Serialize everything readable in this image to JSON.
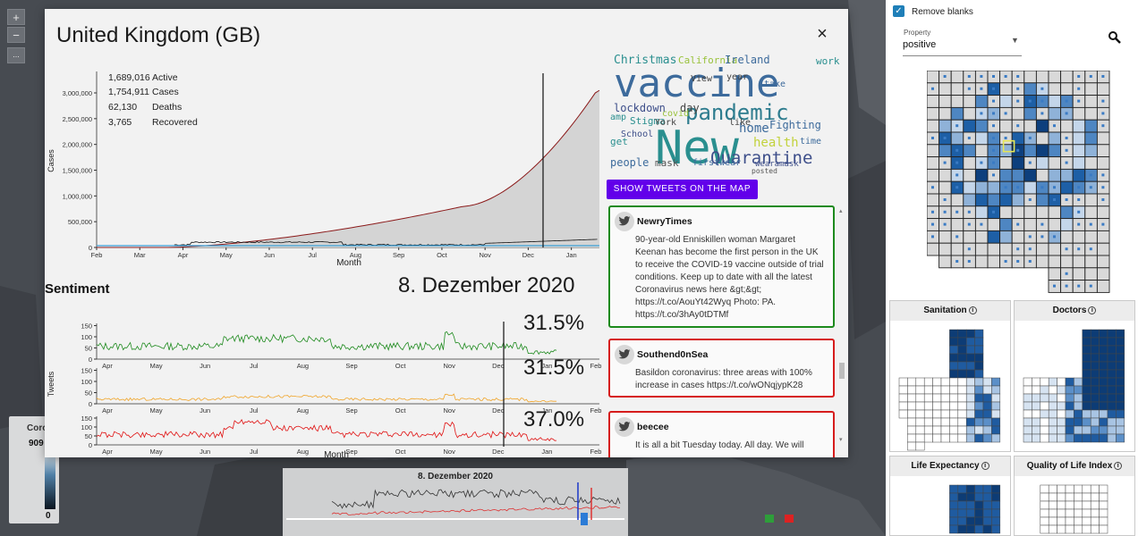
{
  "map": {
    "zoom_in": "+",
    "zoom_out": "−",
    "more": "...",
    "legend": {
      "title": "Coro",
      "value": "909",
      "min": "0"
    },
    "timeline": {
      "title": "8. Dezember 2020"
    }
  },
  "modal": {
    "title": "United Kingdom (GB)",
    "close": "×",
    "stats": [
      {
        "value": "1,689,016",
        "label": "Active"
      },
      {
        "value": "1,754,911",
        "label": "Cases"
      },
      {
        "value": "62,130",
        "label": "Deaths"
      },
      {
        "value": "3,765",
        "label": "Recovered"
      }
    ],
    "cases_chart": {
      "ylabel": "Cases",
      "xlabel": "Month",
      "yticks": [
        "0",
        "500,000",
        "1,000,000",
        "1,500,000",
        "2,000,000",
        "2,500,000",
        "3,000,000"
      ],
      "xticks": [
        "Feb",
        "Mar",
        "Apr",
        "May",
        "Jun",
        "Jul",
        "Aug",
        "Sep",
        "Oct",
        "Nov",
        "Dec",
        "Jan"
      ]
    },
    "sentiment": {
      "title": "Sentiment",
      "date": "8. Dezember 2020",
      "ylabel": "Tweets",
      "xlabel": "Month",
      "yticks": [
        "0",
        "50",
        "100",
        "150"
      ],
      "xticks": [
        "Apr",
        "May",
        "Jun",
        "Jul",
        "Aug",
        "Sep",
        "Oct",
        "Nov",
        "Dec",
        "Jan",
        "Feb"
      ],
      "percentages": [
        "31.5%",
        "31.5%",
        "37.0%"
      ],
      "colors": [
        "#1d8a1d",
        "#f0a428",
        "#e01010"
      ]
    },
    "show_button": "SHOW TWEETS ON THE MAP",
    "tweets": [
      {
        "user": "NewryTimes",
        "text": "90-year-old Enniskillen woman Margaret Keenan has become the first person in the UK to receive the COVID-19 vaccine outside of trial conditions. Keep up to date with all the latest Coronavirus news here &gt;&gt; https://t.co/AouYt42Wyq Photo: PA. https://t.co/3hAy0tDTMf",
        "border": "#1d8a1d"
      },
      {
        "user": "Southend0nSea",
        "text": "Basildon coronavirus: three areas with 100% increase in cases https://t.co/wONqjypK28",
        "border": "#d61c1c"
      },
      {
        "user": "beecee",
        "text": "It is all a bit Tuesday today. All day. We will",
        "border": "#d61c1c"
      }
    ]
  },
  "wordcloud": [
    {
      "t": "vaccine",
      "s": 44,
      "c": "#3d6b9c"
    },
    {
      "t": "New",
      "s": 52,
      "c": "#2a8f8f"
    },
    {
      "t": "pandemic",
      "s": 24,
      "c": "#2d7c8e"
    },
    {
      "t": "Quarantine",
      "s": 19,
      "c": "#3e4f8a"
    },
    {
      "t": "Christmas",
      "s": 13,
      "c": "#2a8f8f"
    },
    {
      "t": "California",
      "s": 11,
      "c": "#9ac23c"
    },
    {
      "t": "Ireland",
      "s": 12,
      "c": "#3d6b9c"
    },
    {
      "t": "work",
      "s": 11,
      "c": "#2a8f8f"
    },
    {
      "t": "lockdown",
      "s": 12,
      "c": "#3e4f8a"
    },
    {
      "t": "day",
      "s": 12,
      "c": "#444"
    },
    {
      "t": "home",
      "s": 14,
      "c": "#3d6b9c"
    },
    {
      "t": "Fighting",
      "s": 12,
      "c": "#3d6b9c"
    },
    {
      "t": "health",
      "s": 14,
      "c": "#c2d23c"
    },
    {
      "t": "time",
      "s": 10,
      "c": "#3d6b9c"
    },
    {
      "t": "Stigma",
      "s": 11,
      "c": "#2a8f8f"
    },
    {
      "t": "School",
      "s": 10,
      "c": "#3e4f8a"
    },
    {
      "t": "people",
      "s": 12,
      "c": "#3d6b9c"
    },
    {
      "t": "mask",
      "s": 11,
      "c": "#555"
    },
    {
      "t": "firstwear",
      "s": 10,
      "c": "#3d6b9c"
    },
    {
      "t": "wearamask",
      "s": 9,
      "c": "#3e4f8a"
    },
    {
      "t": "York",
      "s": 10,
      "c": "#444"
    },
    {
      "t": "like",
      "s": 10,
      "c": "#444"
    },
    {
      "t": "View",
      "s": 10,
      "c": "#444"
    },
    {
      "t": "year",
      "s": 10,
      "c": "#444"
    },
    {
      "t": "take",
      "s": 10,
      "c": "#3d6b9c"
    },
    {
      "t": "get",
      "s": 11,
      "c": "#2a8f8f"
    },
    {
      "t": "amp",
      "s": 10,
      "c": "#2a8f8f"
    },
    {
      "t": "covid",
      "s": 10,
      "c": "#9ac23c"
    },
    {
      "t": "posted",
      "s": 8,
      "c": "#555"
    }
  ],
  "side": {
    "remove_blanks": "Remove blanks",
    "property_label": "Property",
    "property_value": "positive",
    "minis": [
      {
        "title": "Sanitation"
      },
      {
        "title": "Doctors"
      },
      {
        "title": "Life Expectancy"
      },
      {
        "title": "Quality of Life Index"
      }
    ]
  }
}
